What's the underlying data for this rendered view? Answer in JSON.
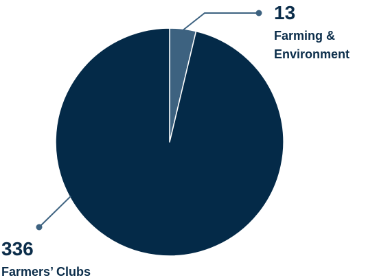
{
  "chart_data": {
    "type": "pie",
    "categories": [
      "Farming & Environment",
      "Farmers’ Clubs"
    ],
    "values": [
      13,
      336
    ],
    "colors": [
      "#3d6280",
      "#042a48"
    ],
    "label_color": "#0b2d4a",
    "data_labels": [
      {
        "value": "13",
        "label_lines": [
          "Farming &",
          "Environment"
        ]
      },
      {
        "value": "336",
        "label_lines": [
          "Farmers’ Clubs"
        ]
      }
    ]
  }
}
